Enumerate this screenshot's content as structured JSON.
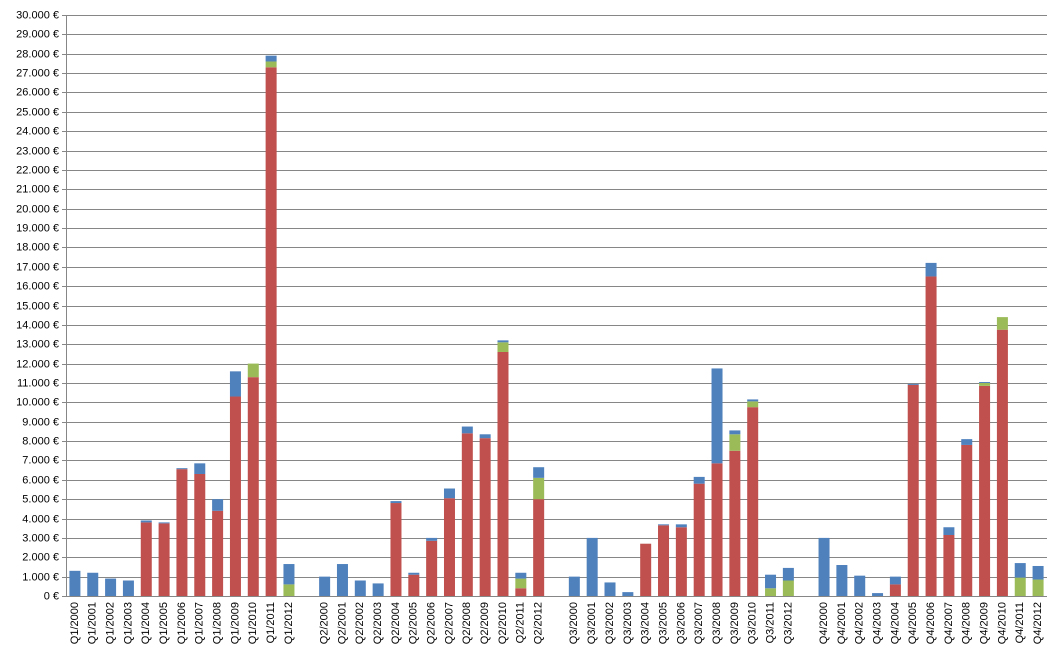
{
  "chart_data": {
    "type": "stacked-bar",
    "categories": [
      "Q1/2000",
      "Q1/2001",
      "Q1/2002",
      "Q1/2003",
      "Q1/2004",
      "Q1/2005",
      "Q1/2006",
      "Q1/2007",
      "Q1/2008",
      "Q1/2009",
      "Q1/2010",
      "Q1/2011",
      "Q1/2012",
      null,
      "Q2/2000",
      "Q2/2001",
      "Q2/2002",
      "Q2/2003",
      "Q2/2004",
      "Q2/2005",
      "Q2/2006",
      "Q2/2007",
      "Q2/2008",
      "Q2/2009",
      "Q2/2010",
      "Q2/2011",
      "Q2/2012",
      null,
      "Q3/2000",
      "Q3/2001",
      "Q3/2002",
      "Q3/2003",
      "Q3/2004",
      "Q3/2005",
      "Q3/2006",
      "Q3/2007",
      "Q3/2008",
      "Q3/2009",
      "Q3/2010",
      "Q3/2011",
      "Q3/2012",
      null,
      "Q4/2000",
      "Q4/2001",
      "Q4/2002",
      "Q4/2003",
      "Q4/2004",
      "Q4/2005",
      "Q4/2006",
      "Q4/2007",
      "Q4/2008",
      "Q4/2009",
      "Q4/2010",
      "Q4/2011",
      "Q4/2012"
    ],
    "series": [
      {
        "color": "#c0504d",
        "values": [
          0,
          0,
          0,
          0,
          3800,
          3750,
          6550,
          6300,
          4400,
          10300,
          11300,
          27300,
          0,
          null,
          0,
          0,
          0,
          0,
          4800,
          1100,
          2850,
          5050,
          8400,
          8150,
          12600,
          400,
          5000,
          null,
          0,
          0,
          0,
          0,
          2700,
          3650,
          3550,
          5800,
          6850,
          7500,
          9750,
          0,
          0,
          null,
          0,
          0,
          0,
          0,
          600,
          10900,
          16500,
          3150,
          7800,
          10850,
          13750,
          0,
          0
        ]
      },
      {
        "color": "#9bbb59",
        "values": [
          0,
          0,
          0,
          0,
          0,
          0,
          0,
          0,
          0,
          0,
          700,
          300,
          600,
          null,
          0,
          0,
          0,
          0,
          0,
          0,
          0,
          0,
          0,
          0,
          500,
          500,
          1100,
          null,
          0,
          0,
          0,
          0,
          0,
          0,
          0,
          0,
          0,
          850,
          300,
          400,
          800,
          null,
          0,
          0,
          0,
          0,
          0,
          0,
          0,
          0,
          0,
          150,
          650,
          950,
          850
        ]
      },
      {
        "color": "#4f81bd",
        "values": [
          1300,
          1200,
          900,
          800,
          100,
          50,
          50,
          550,
          600,
          1300,
          0,
          300,
          1050,
          null,
          1000,
          1650,
          800,
          650,
          100,
          100,
          150,
          500,
          350,
          200,
          100,
          300,
          550,
          null,
          1000,
          3000,
          700,
          200,
          0,
          50,
          150,
          350,
          4900,
          200,
          100,
          700,
          650,
          null,
          3000,
          1600,
          1050,
          150,
          400,
          50,
          700,
          400,
          300,
          50,
          0,
          750,
          700
        ]
      }
    ],
    "ylim": [
      0,
      30000
    ],
    "yticks": [
      {
        "value": 0,
        "label": "0 €"
      },
      {
        "value": 1000,
        "label": "1.000 €"
      },
      {
        "value": 2000,
        "label": "2.000 €"
      },
      {
        "value": 3000,
        "label": "3.000 €"
      },
      {
        "value": 4000,
        "label": "4.000 €"
      },
      {
        "value": 5000,
        "label": "5.000 €"
      },
      {
        "value": 6000,
        "label": "6.000 €"
      },
      {
        "value": 7000,
        "label": "7.000 €"
      },
      {
        "value": 8000,
        "label": "8.000 €"
      },
      {
        "value": 9000,
        "label": "9.000 €"
      },
      {
        "value": 10000,
        "label": "10.000 €"
      },
      {
        "value": 11000,
        "label": "11.000 €"
      },
      {
        "value": 12000,
        "label": "12.000 €"
      },
      {
        "value": 13000,
        "label": "13.000 €"
      },
      {
        "value": 14000,
        "label": "14.000 €"
      },
      {
        "value": 15000,
        "label": "15.000 €"
      },
      {
        "value": 16000,
        "label": "16.000 €"
      },
      {
        "value": 17000,
        "label": "17.000 €"
      },
      {
        "value": 18000,
        "label": "18.000 €"
      },
      {
        "value": 19000,
        "label": "19.000 €"
      },
      {
        "value": 20000,
        "label": "20.000 €"
      },
      {
        "value": 21000,
        "label": "21.000 €"
      },
      {
        "value": 22000,
        "label": "22.000 €"
      },
      {
        "value": 23000,
        "label": "23.000 €"
      },
      {
        "value": 24000,
        "label": "24.000 €"
      },
      {
        "value": 25000,
        "label": "25.000 €"
      },
      {
        "value": 26000,
        "label": "26.000 €"
      },
      {
        "value": 27000,
        "label": "27.000 €"
      },
      {
        "value": 28000,
        "label": "28.000 €"
      },
      {
        "value": 29000,
        "label": "29.000 €"
      },
      {
        "value": 30000,
        "label": "30.000 €"
      }
    ],
    "grid": true
  }
}
